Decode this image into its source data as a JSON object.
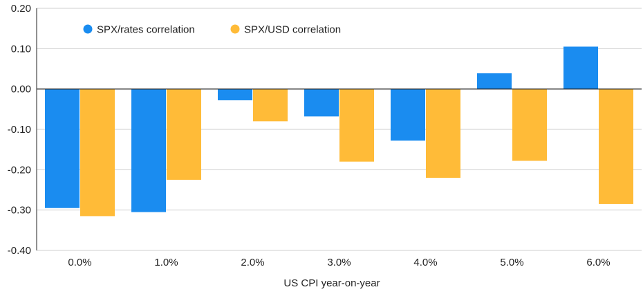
{
  "chart_data": {
    "type": "bar",
    "title": "",
    "xlabel": "US CPI year-on-year",
    "ylabel": "",
    "categories": [
      "0.0%",
      "1.0%",
      "2.0%",
      "3.0%",
      "4.0%",
      "5.0%",
      "6.0%"
    ],
    "series": [
      {
        "name": "SPX/rates correlation",
        "color": "#1a8cf0",
        "values": [
          -0.295,
          -0.305,
          -0.028,
          -0.068,
          -0.128,
          0.039,
          0.105
        ]
      },
      {
        "name": "SPX/USD correlation",
        "color": "#ffbb38",
        "values": [
          -0.315,
          -0.225,
          -0.08,
          -0.18,
          -0.22,
          -0.178,
          -0.285
        ]
      }
    ],
    "ylim": [
      -0.4,
      0.2
    ],
    "yticks": [
      "0.20",
      "0.10",
      "0.00",
      "-0.10",
      "-0.20",
      "-0.30",
      "-0.40"
    ],
    "ytick_values": [
      0.2,
      0.1,
      0.0,
      -0.1,
      -0.2,
      -0.3,
      -0.4
    ],
    "grid": "horizontal",
    "legend": "top-left"
  }
}
